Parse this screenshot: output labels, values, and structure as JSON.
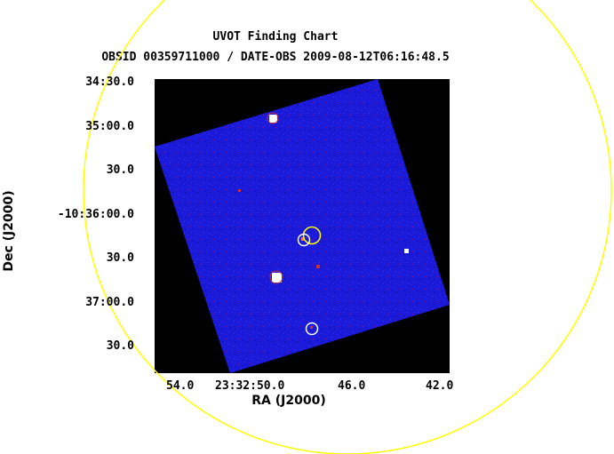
{
  "title": "UVOT Finding Chart",
  "subtitle": "OBSID 00359711000 / DATE-OBS 2009-08-12T06:16:48.5",
  "axes": {
    "x_label": "RA (J2000)",
    "y_label": "Dec (J2000)",
    "x_ticks": [
      "54.0",
      "23:32:50.0",
      "46.0",
      "42.0"
    ],
    "y_ticks": [
      "34:30.0",
      "35:00.0",
      "30.0",
      "-10:36:00.0",
      "30.0",
      "37:00.0",
      "30.0"
    ]
  },
  "colors": {
    "background": "#ffffff",
    "image_background": "#000000",
    "exposure_field": "#1a1ad8",
    "large_circle": "#ffff00",
    "target_circle": "#ffff00",
    "marker_circle": "#ffffff"
  }
}
